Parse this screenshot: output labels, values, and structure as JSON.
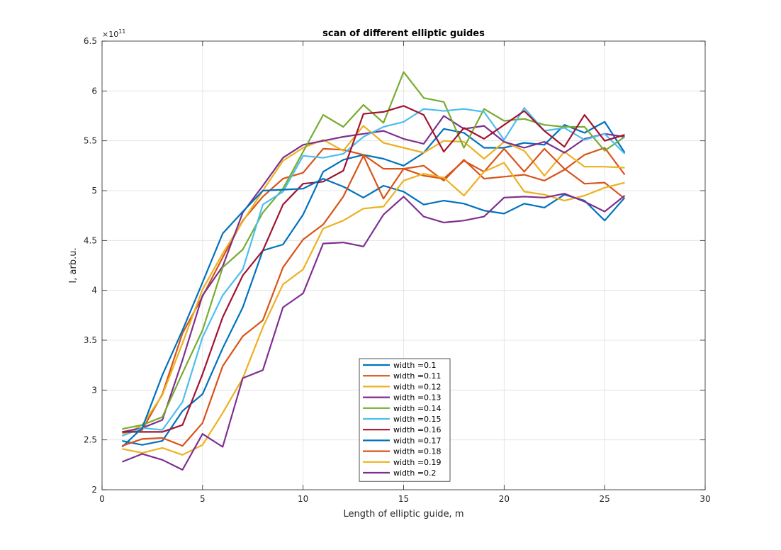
{
  "chart_data": {
    "type": "line",
    "title": "scan of different elliptic guides",
    "xlabel": "Length of elliptic guide, m",
    "ylabel": "I, arb.u.",
    "y_multiplier_base": "×10",
    "y_multiplier_exponent": "11",
    "xlim": [
      0,
      30
    ],
    "ylim": [
      2,
      6.5
    ],
    "xticks": [
      0,
      5,
      10,
      15,
      20,
      25,
      30
    ],
    "yticks": [
      2,
      2.5,
      3,
      3.5,
      4,
      4.5,
      5,
      5.5,
      6,
      6.5
    ],
    "xtick_labels": [
      "0",
      "5",
      "10",
      "15",
      "20",
      "25",
      "30"
    ],
    "ytick_labels": [
      "2",
      "2.5",
      "3",
      "3.5",
      "4",
      "4.5",
      "5",
      "5.5",
      "6",
      "6.5"
    ],
    "grid": true,
    "legend_position": "bottom-center",
    "x": [
      1,
      2,
      3,
      4,
      5,
      6,
      7,
      8,
      9,
      10,
      11,
      12,
      13,
      14,
      15,
      16,
      17,
      18,
      19,
      20,
      21,
      22,
      23,
      24,
      25,
      26
    ],
    "series": [
      {
        "name": "width =0.1",
        "color": "#0072bd",
        "values": [
          2.49,
          2.45,
          2.49,
          2.79,
          2.96,
          3.42,
          3.83,
          4.4,
          4.46,
          4.76,
          5.19,
          5.31,
          5.36,
          5.32,
          5.25,
          5.38,
          5.62,
          5.58,
          5.43,
          5.43,
          5.48,
          5.46,
          5.66,
          5.58,
          5.69,
          5.38
        ]
      },
      {
        "name": "width =0.11",
        "color": "#d95319",
        "values": [
          2.57,
          2.6,
          2.96,
          3.57,
          3.94,
          4.33,
          4.7,
          4.94,
          5.12,
          5.18,
          5.42,
          5.41,
          5.36,
          5.22,
          5.22,
          5.25,
          5.1,
          5.31,
          5.12,
          5.14,
          5.16,
          5.1,
          5.21,
          5.36,
          5.43,
          5.16
        ]
      },
      {
        "name": "width =0.12",
        "color": "#edb120",
        "values": [
          2.54,
          2.65,
          2.95,
          3.47,
          4.01,
          4.37,
          4.69,
          5.0,
          5.3,
          5.43,
          5.51,
          5.4,
          5.65,
          5.48,
          5.43,
          5.38,
          5.5,
          5.49,
          5.32,
          5.49,
          5.4,
          5.15,
          5.39,
          5.24,
          5.24,
          5.23
        ]
      },
      {
        "name": "width =0.13",
        "color": "#7e2f8e",
        "values": [
          2.58,
          2.62,
          2.7,
          3.3,
          3.95,
          4.24,
          4.78,
          5.05,
          5.33,
          5.46,
          5.5,
          5.54,
          5.57,
          5.6,
          5.52,
          5.47,
          5.75,
          5.62,
          5.65,
          5.49,
          5.43,
          5.49,
          5.38,
          5.52,
          5.57,
          5.54
        ]
      },
      {
        "name": "width =0.14",
        "color": "#77ac30",
        "values": [
          2.61,
          2.65,
          2.73,
          3.17,
          3.6,
          4.23,
          4.41,
          4.78,
          5.02,
          5.39,
          5.76,
          5.64,
          5.86,
          5.68,
          6.19,
          5.93,
          5.89,
          5.43,
          5.82,
          5.7,
          5.72,
          5.66,
          5.64,
          5.64,
          5.4,
          5.54
        ]
      },
      {
        "name": "width =0.15",
        "color": "#4dbeee",
        "values": [
          2.54,
          2.62,
          2.6,
          2.88,
          3.53,
          3.95,
          4.21,
          4.86,
          4.99,
          5.35,
          5.33,
          5.37,
          5.54,
          5.64,
          5.69,
          5.82,
          5.8,
          5.82,
          5.79,
          5.51,
          5.83,
          5.6,
          5.63,
          5.51,
          5.57,
          5.37
        ]
      },
      {
        "name": "width =0.16",
        "color": "#a2142f",
        "values": [
          2.58,
          2.58,
          2.58,
          2.65,
          3.16,
          3.73,
          4.15,
          4.4,
          4.86,
          5.07,
          5.09,
          5.2,
          5.77,
          5.79,
          5.85,
          5.76,
          5.39,
          5.63,
          5.52,
          5.66,
          5.8,
          5.6,
          5.44,
          5.76,
          5.5,
          5.56
        ]
      },
      {
        "name": "width =0.17",
        "color": "#0072bd",
        "values": [
          2.43,
          2.62,
          3.15,
          3.6,
          4.08,
          4.57,
          4.79,
          5.0,
          5.01,
          5.02,
          5.12,
          5.04,
          4.93,
          5.05,
          4.99,
          4.86,
          4.9,
          4.87,
          4.8,
          4.77,
          4.87,
          4.83,
          4.96,
          4.9,
          4.7,
          4.93
        ]
      },
      {
        "name": "width =0.18",
        "color": "#d95319",
        "values": [
          2.44,
          2.51,
          2.52,
          2.44,
          2.67,
          3.24,
          3.54,
          3.7,
          4.23,
          4.51,
          4.66,
          4.94,
          5.35,
          4.92,
          5.22,
          5.15,
          5.12,
          5.3,
          5.19,
          5.42,
          5.19,
          5.42,
          5.22,
          5.07,
          5.08,
          4.92
        ]
      },
      {
        "name": "width =0.19",
        "color": "#edb120",
        "values": [
          2.41,
          2.37,
          2.42,
          2.35,
          2.45,
          2.77,
          3.12,
          3.63,
          4.06,
          4.21,
          4.62,
          4.7,
          4.82,
          4.84,
          5.1,
          5.17,
          5.13,
          4.95,
          5.19,
          5.28,
          4.99,
          4.96,
          4.9,
          4.95,
          5.03,
          5.08
        ]
      },
      {
        "name": "width =0.2",
        "color": "#7e2f8e",
        "values": [
          2.28,
          2.36,
          2.3,
          2.2,
          2.56,
          2.43,
          3.12,
          3.2,
          3.83,
          3.97,
          4.47,
          4.48,
          4.44,
          4.76,
          4.94,
          4.74,
          4.68,
          4.7,
          4.74,
          4.93,
          4.94,
          4.93,
          4.97,
          4.89,
          4.79,
          4.95
        ]
      }
    ]
  }
}
